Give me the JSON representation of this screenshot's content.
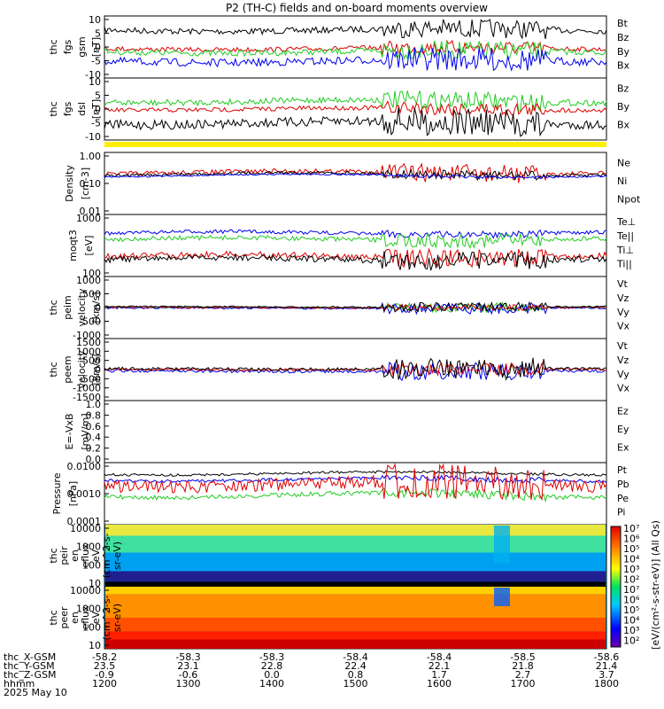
{
  "title": "P2 (TH-C) fields and on-board moments overview",
  "panels": [
    {
      "id": "fgs-gsm",
      "ylabel": [
        "thc",
        "fgs",
        "gsm",
        "[nT]"
      ],
      "yticks": [
        "10",
        "5",
        "0",
        "-5",
        "-10"
      ],
      "legend": [
        {
          "label": "Bt",
          "color": "#000000"
        },
        {
          "label": "Bz",
          "color": "#dd0000"
        },
        {
          "label": "By",
          "color": "#22cc22"
        },
        {
          "label": "Bx",
          "color": "#0000ee"
        }
      ]
    },
    {
      "id": "fgs-dsl",
      "ylabel": [
        "thc",
        "fgs",
        "dsl",
        "[nT]"
      ],
      "yticks": [
        "10",
        "5",
        "0",
        "-5",
        "-10"
      ],
      "legend": [
        {
          "label": "Bz",
          "color": "#dd0000"
        },
        {
          "label": "By",
          "color": "#22cc22"
        },
        {
          "label": "Bx",
          "color": "#000000"
        }
      ]
    },
    {
      "id": "density",
      "ylabel": [
        "Density",
        "[cm-3]"
      ],
      "yticks": [
        "1.00",
        "0.10",
        "0.01"
      ],
      "legend": [
        {
          "label": "Ne",
          "color": "#dd0000"
        },
        {
          "label": "Ni",
          "color": "#000000"
        },
        {
          "label": "Npot",
          "color": "#0000ee"
        }
      ]
    },
    {
      "id": "temperature",
      "ylabel": [
        "moqt3",
        "[eV]"
      ],
      "yticks": [
        "1000",
        "100"
      ],
      "legend": [
        {
          "label": "Te⊥",
          "color": "#dd0000"
        },
        {
          "label": "Te||",
          "color": "#000000"
        },
        {
          "label": "Ti⊥",
          "color": "#22cc22"
        },
        {
          "label": "Ti||",
          "color": "#22cc22"
        }
      ]
    },
    {
      "id": "peim-velocity",
      "ylabel": [
        "thc",
        "peim",
        "velocity",
        "[km/s]"
      ],
      "yticks": [
        "1000",
        "500",
        "0",
        "-500",
        "-1000"
      ],
      "legend": [
        {
          "label": "Vt",
          "color": "#000000"
        },
        {
          "label": "Vz",
          "color": "#dd0000"
        },
        {
          "label": "Vy",
          "color": "#22cc22"
        },
        {
          "label": "Vx",
          "color": "#0000ee"
        }
      ]
    },
    {
      "id": "peem-velocity",
      "ylabel": [
        "thc",
        "peem",
        "velocity",
        "[km/s]"
      ],
      "yticks": [
        "1500",
        "1000",
        "500",
        "0",
        "-500",
        "-1000",
        "-1500"
      ],
      "legend": [
        {
          "label": "Vt",
          "color": "#000000"
        },
        {
          "label": "Vz",
          "color": "#dd0000"
        },
        {
          "label": "Vy",
          "color": "#22cc22"
        },
        {
          "label": "Vx",
          "color": "#0000ee"
        }
      ]
    },
    {
      "id": "efield",
      "ylabel": [
        "E=-VxB",
        "[mV/m]"
      ],
      "yticks": [
        "1.0",
        "0.8",
        "0.6",
        "0.4",
        "0.2",
        "0.0"
      ],
      "legend": [
        {
          "label": "Ez",
          "color": "#dd0000"
        },
        {
          "label": "Ey",
          "color": "#22cc22"
        },
        {
          "label": "Ex",
          "color": "#0000ee"
        }
      ]
    },
    {
      "id": "pressure",
      "ylabel": [
        "Pressure",
        "[nPa]"
      ],
      "yticks": [
        "0.0100",
        "0.0010",
        "0.0001"
      ],
      "legend": [
        {
          "label": "Pt",
          "color": "#000000"
        },
        {
          "label": "Pb",
          "color": "#dd0000"
        },
        {
          "label": "Pe",
          "color": "#22cc22"
        },
        {
          "label": "Pi",
          "color": "#0000ee"
        }
      ]
    },
    {
      "id": "peir-spec",
      "ylabel": [
        "thc",
        "peir",
        "en",
        "eflux",
        "eV",
        "(cm^2-s-",
        "sr-eV)"
      ],
      "yticks": [
        "10000",
        "1000",
        "100",
        "10"
      ]
    },
    {
      "id": "peer-spec",
      "ylabel": [
        "thc",
        "peer",
        "en",
        "eflux",
        "eV",
        "(cm^2-s-",
        "sr-eV)"
      ],
      "yticks": [
        "10000",
        "1000",
        "100",
        "10"
      ]
    }
  ],
  "colorbar": {
    "label": "[eV/(cm²-s-str-eV)] (All Qs)",
    "ticks": [
      "10⁷",
      "10⁶",
      "10⁵",
      "10⁴",
      "10³",
      "10²",
      "10⁷",
      "10⁶",
      "10⁵",
      "10⁴",
      "10³",
      "10²"
    ]
  },
  "xaxis": {
    "rows": [
      {
        "label": "thc_X-GSM",
        "values": [
          "-58.2",
          "-58.3",
          "-58.3",
          "-58.4",
          "-58.4",
          "-58.5",
          "-58.6"
        ]
      },
      {
        "label": "thc_Y-GSM",
        "values": [
          "23.5",
          "23.1",
          "22.8",
          "22.4",
          "22.1",
          "21.8",
          "21.4"
        ]
      },
      {
        "label": "thc_Z-GSM",
        "values": [
          "-0.9",
          "-0.6",
          "0.0",
          "0.8",
          "1.7",
          "2.7",
          "3.7"
        ]
      },
      {
        "label": "hhmm",
        "values": [
          "1200",
          "1300",
          "1400",
          "1500",
          "1600",
          "1700",
          "1800"
        ]
      }
    ],
    "date": "2025 May 10"
  }
}
